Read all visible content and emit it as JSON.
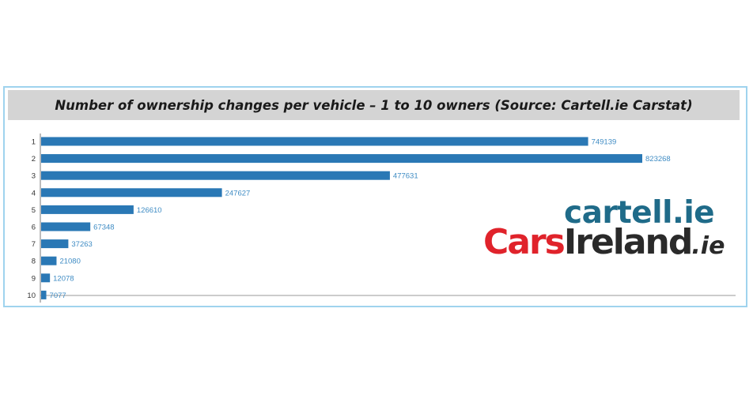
{
  "chart_data": {
    "type": "bar",
    "orientation": "horizontal",
    "title": "Number of ownership changes per vehicle – 1 to 10 owners (Source: Cartell.ie Carstat)",
    "categories": [
      "1",
      "2",
      "3",
      "4",
      "5",
      "6",
      "7",
      "8",
      "9",
      "10"
    ],
    "values": [
      749139,
      823268,
      477631,
      247627,
      126610,
      67348,
      37263,
      21080,
      12078,
      7077
    ],
    "xlabel": "",
    "ylabel": "",
    "xlim": [
      0,
      900000
    ],
    "grid": false,
    "bar_color": "#2a78b5",
    "label_color": "#3f8cc4"
  },
  "logos": {
    "cartell": "cartell.ie",
    "carsireland_cars": "Cars",
    "carsireland_ireland": "Ireland",
    "carsireland_ie": ".ie"
  }
}
